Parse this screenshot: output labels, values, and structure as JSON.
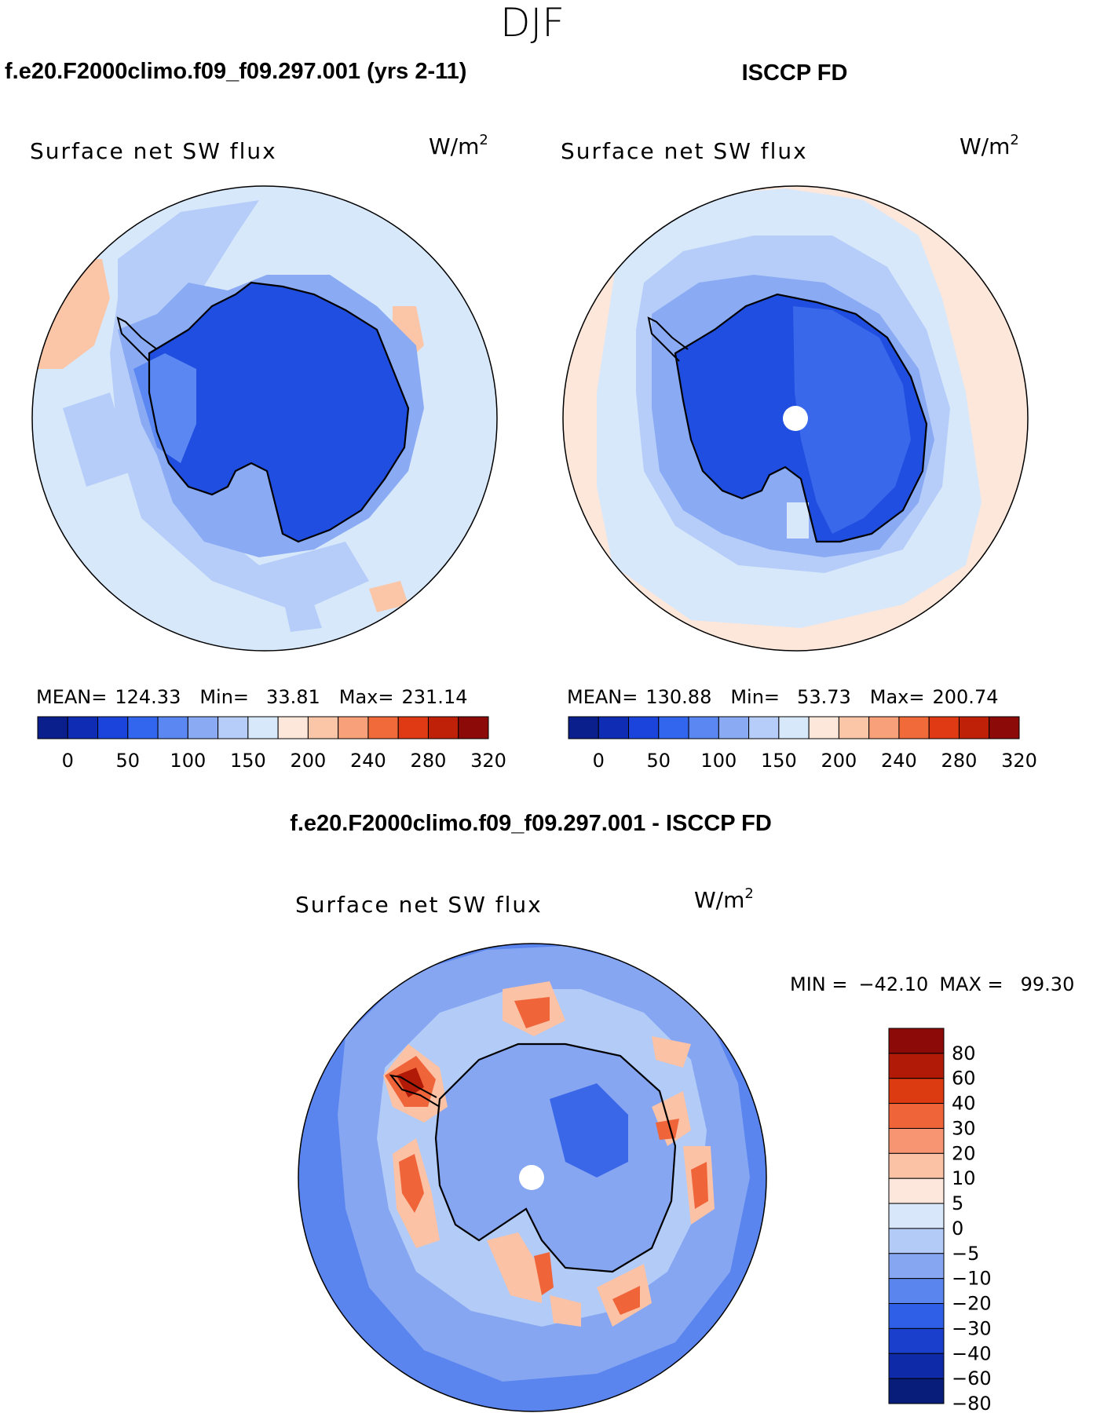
{
  "figure": {
    "season": "DJF"
  },
  "chart_data": [
    {
      "type": "heatmap",
      "projection": "south-polar-stereographic",
      "title": "f.e20.F2000climo.f09_f09.297.001 (yrs 2-11)",
      "variable": "Surface net SW flux",
      "units": "W/m",
      "units_exp": "2",
      "stats": {
        "mean_label": "MEAN=",
        "mean": "124.33",
        "min_label": "Min=",
        "min": "33.81",
        "max_label": "Max=",
        "max": "231.14"
      },
      "colorbar_ticks": [
        "0",
        "50",
        "100",
        "150",
        "200",
        "240",
        "280",
        "320"
      ],
      "field_levels": [
        "ocean_light",
        "ocean_mid",
        "coast_band",
        "coast_deep",
        "interior",
        "warm_patch"
      ]
    },
    {
      "type": "heatmap",
      "projection": "south-polar-stereographic",
      "title": "ISCCP FD",
      "variable": "Surface net SW flux",
      "units": "W/m",
      "units_exp": "2",
      "stats": {
        "mean_label": "MEAN=",
        "mean": "130.88",
        "min_label": "Min=",
        "min": "53.73",
        "max_label": "Max=",
        "max": "200.74"
      },
      "colorbar_ticks": [
        "0",
        "50",
        "100",
        "150",
        "200",
        "240",
        "280",
        "320"
      ],
      "field_levels": [
        "ocean_warm",
        "ocean_light",
        "ocean_mid",
        "coast_band",
        "interior_light",
        "interior"
      ]
    },
    {
      "type": "heatmap",
      "projection": "south-polar-stereographic",
      "title": "f.e20.F2000climo.f09_f09.297.001 - ISCCP FD",
      "variable": "Surface net SW flux",
      "units": "W/m",
      "units_exp": "2",
      "stats": {
        "min_label": "MIN =",
        "min": "−42.10",
        "max_label": "MAX =",
        "max": "99.30"
      },
      "colorbar_ticks": [
        "80",
        "60",
        "40",
        "30",
        "20",
        "10",
        "5",
        "0",
        "−5",
        "−10",
        "−20",
        "−30",
        "−40",
        "−60",
        "−80"
      ]
    }
  ],
  "palettes": {
    "abs": [
      "#0a1e8c",
      "#0f2cb4",
      "#1a44dc",
      "#3366ee",
      "#5a87f2",
      "#8aaaf4",
      "#b5cdf8",
      "#d8e8fb",
      "#fde6da",
      "#fbc6a8",
      "#f8a07a",
      "#f06a3a",
      "#e03a14",
      "#bf2008",
      "#8c0a08"
    ],
    "diff": [
      "#8c0a08",
      "#b21a08",
      "#dc3a10",
      "#f0643a",
      "#f79472",
      "#fbc2a6",
      "#fde6dc",
      "#d9e7fb",
      "#b2cbf7",
      "#86a6f2",
      "#5a84ee",
      "#2e5fe6",
      "#1a3fcc",
      "#0e2aa8",
      "#081c7a"
    ]
  },
  "map_colors": {
    "ocean_light": "#d8e8fb",
    "ocean_warm": "#fde6da",
    "ocean_mid": "#b5cdf8",
    "coast_band": "#8aaaf4",
    "coast_deep": "#5a87f2",
    "interior": "#1f4ee0",
    "interior_light": "#3a68ea",
    "warm_patch": "#fbc6a8",
    "diff_outer": "#5a84ee",
    "diff_mid": "#86a6f2",
    "diff_inner": "#b2cbf7",
    "diff_ice": "#86a6f2",
    "diff_ice_dark": "#3a66e8",
    "diff_red": "#f0643a",
    "diff_red_light": "#fbc2a6",
    "diff_red_dark": "#b21a08"
  }
}
